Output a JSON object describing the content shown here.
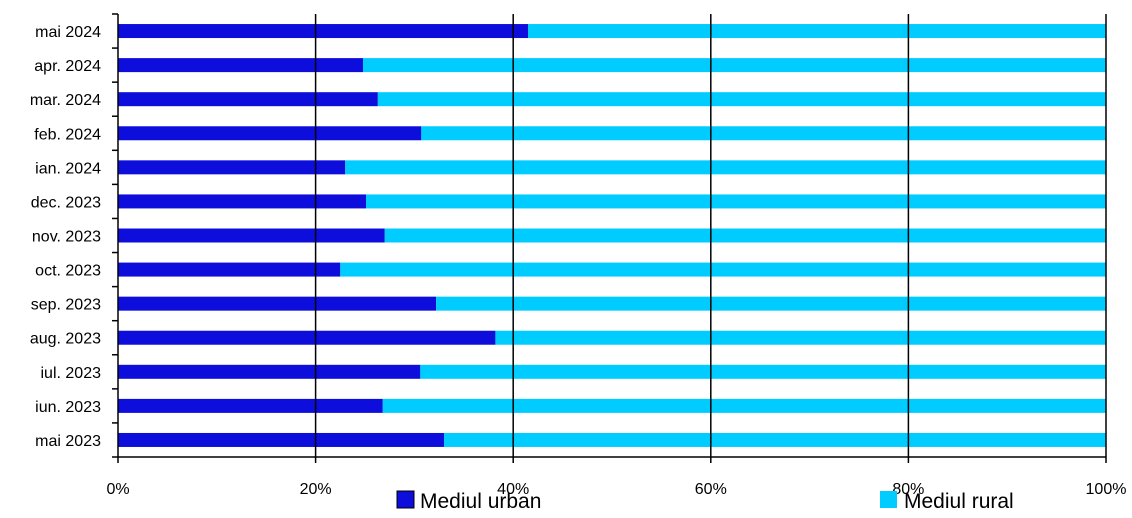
{
  "chart_data": {
    "type": "bar",
    "orientation": "horizontal",
    "stacked": "percent",
    "categories": [
      "mai 2024",
      "apr. 2024",
      "mar. 2024",
      "feb. 2024",
      "ian. 2024",
      "dec. 2023",
      "nov. 2023",
      "oct. 2023",
      "sep. 2023",
      "aug. 2023",
      "iul. 2023",
      "iun. 2023",
      "mai 2023"
    ],
    "series": [
      {
        "name": "Mediul urban",
        "color": "#0d0ddc",
        "values": [
          41.5,
          24.8,
          26.3,
          30.7,
          23.0,
          25.1,
          27.0,
          22.5,
          32.2,
          38.2,
          30.6,
          26.8,
          33.0
        ]
      },
      {
        "name": "Mediul rural",
        "color": "#00ccff",
        "values": [
          58.5,
          75.2,
          73.7,
          69.3,
          77.0,
          74.9,
          73.0,
          77.5,
          67.8,
          61.8,
          69.4,
          73.2,
          67.0
        ]
      }
    ],
    "xlim": [
      0,
      100
    ],
    "x_ticks": [
      "0%",
      "20%",
      "40%",
      "60%",
      "80%",
      "100%"
    ],
    "grid": "vertical",
    "legend_position": "bottom",
    "title": "",
    "xlabel": "",
    "ylabel": ""
  }
}
